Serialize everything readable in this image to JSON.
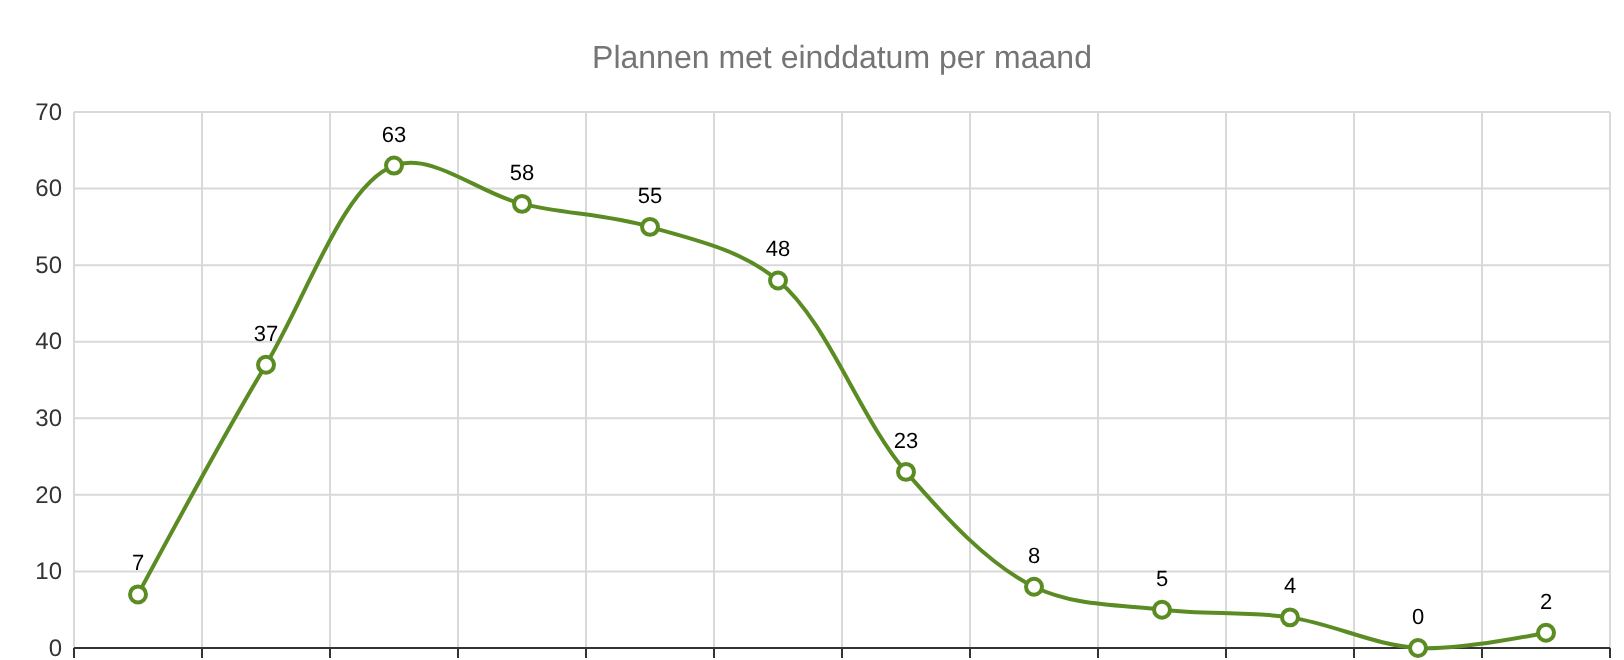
{
  "chart_data": {
    "type": "line",
    "title": "Plannen met einddatum per maand",
    "categories": [
      null,
      null,
      null,
      null,
      null,
      null,
      null,
      null,
      null,
      null,
      null,
      null
    ],
    "series": [
      {
        "color": "#5b8c23",
        "values": [
          7,
          37,
          63,
          58,
          55,
          48,
          23,
          8,
          5,
          4,
          0,
          2
        ]
      }
    ],
    "ylim": [
      0,
      70
    ],
    "yticks": [
      0,
      10,
      20,
      30,
      40,
      50,
      60,
      70
    ],
    "grid": true,
    "marker": "circle",
    "data_labels": true
  }
}
